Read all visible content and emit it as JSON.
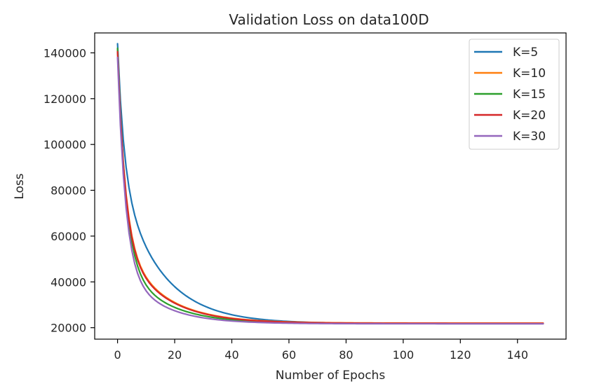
{
  "chart_data": {
    "type": "line",
    "title": "Validation Loss on data100D",
    "xlabel": "Number of Epochs",
    "ylabel": "Loss",
    "xlim": [
      -8,
      157
    ],
    "ylim": [
      15000,
      148700
    ],
    "xticks": [
      0,
      20,
      40,
      60,
      80,
      100,
      120,
      140
    ],
    "yticks": [
      20000,
      40000,
      60000,
      80000,
      100000,
      120000,
      140000
    ],
    "grid": false,
    "legend_position": "top-right",
    "x": {
      "start": 0,
      "end": 149,
      "step": 1
    },
    "series": [
      {
        "name": "K=5",
        "color": "#1f77b4",
        "curve": {
          "start": 144000,
          "floor": 21800,
          "fast_amp": 55000,
          "fast_tau": 2.2,
          "slow_amp": 67200,
          "slow_tau": 14
        }
      },
      {
        "name": "K=10",
        "color": "#ff7f0e",
        "curve": {
          "start": 141500,
          "floor": 22000,
          "fast_amp": 82000,
          "fast_tau": 2.6,
          "slow_amp": 37500,
          "slow_tau": 14
        }
      },
      {
        "name": "K=15",
        "color": "#2ca02c",
        "curve": {
          "start": 142000,
          "floor": 21800,
          "fast_amp": 91000,
          "fast_tau": 2.8,
          "slow_amp": 29200,
          "slow_tau": 14
        }
      },
      {
        "name": "K=20",
        "color": "#d62728",
        "curve": {
          "start": 140500,
          "floor": 21900,
          "fast_amp": 82000,
          "fast_tau": 2.6,
          "slow_amp": 36600,
          "slow_tau": 14
        }
      },
      {
        "name": "K=30",
        "color": "#9467bd",
        "curve": {
          "start": 138000,
          "floor": 21700,
          "fast_amp": 90000,
          "fast_tau": 2.7,
          "slow_amp": 26300,
          "slow_tau": 13
        }
      }
    ]
  }
}
